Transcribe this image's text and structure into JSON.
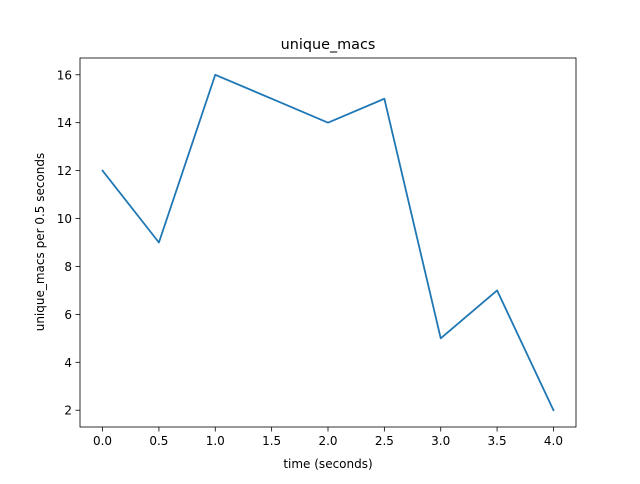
{
  "chart_data": {
    "type": "line",
    "title": "unique_macs",
    "xlabel": "time (seconds)",
    "ylabel": "unique_macs per 0.5 seconds",
    "x": [
      0.0,
      0.5,
      1.0,
      1.5,
      2.0,
      2.5,
      3.0,
      3.5,
      4.0
    ],
    "series": [
      {
        "values": [
          12,
          9,
          16,
          15,
          14,
          15,
          5,
          7,
          2
        ],
        "color": "#1f77b4"
      }
    ],
    "xlim": [
      -0.2,
      4.2
    ],
    "ylim": [
      1.3,
      16.7
    ],
    "xticks": [
      0.0,
      0.5,
      1.0,
      1.5,
      2.0,
      2.5,
      3.0,
      3.5,
      4.0
    ],
    "xtick_labels": [
      "0.0",
      "0.5",
      "1.0",
      "1.5",
      "2.0",
      "2.5",
      "3.0",
      "3.5",
      "4.0"
    ],
    "yticks": [
      2,
      4,
      6,
      8,
      10,
      12,
      14,
      16
    ],
    "ytick_labels": [
      "2",
      "4",
      "6",
      "8",
      "10",
      "12",
      "14",
      "16"
    ],
    "grid": false,
    "legend": "none"
  }
}
